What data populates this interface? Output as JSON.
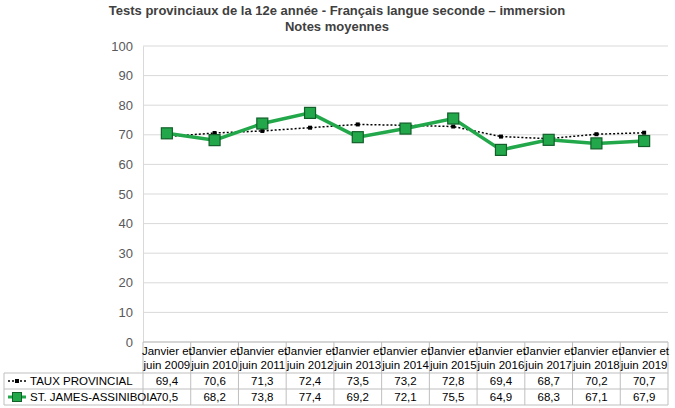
{
  "chart_data": {
    "type": "line",
    "title": "Tests provinciaux de la 12e année - Français langue seconde – immersion",
    "subtitle": "Notes moyennes",
    "categories": [
      "Janvier et juin 2009",
      "Janvier et juin 2010",
      "Janvier et juin 2011",
      "Janvier et juin 2012",
      "Janvier et juin 2013",
      "Janvier et juin 2014",
      "Janvier et juin 2015",
      "Janvier et juin 2016",
      "Janvier et juin 2017",
      "Janvier et juin 2018",
      "Janvier et juin 2019"
    ],
    "series": [
      {
        "name": "TAUX PROVINCIAL",
        "color": "#000000",
        "line_style": "dotted",
        "marker": "square",
        "values": [
          69.4,
          70.6,
          71.3,
          72.4,
          73.5,
          73.2,
          72.8,
          69.4,
          68.7,
          70.2,
          70.7
        ],
        "value_labels": [
          "69,4",
          "70,6",
          "71,3",
          "72,4",
          "73,5",
          "73,2",
          "72,8",
          "69,4",
          "68,7",
          "70,2",
          "70,7"
        ]
      },
      {
        "name": "ST. JAMES-ASSINIBOIA",
        "color": "#22a84a",
        "line_style": "solid",
        "marker": "square",
        "values": [
          70.5,
          68.2,
          73.8,
          77.4,
          69.2,
          72.1,
          75.5,
          64.9,
          68.3,
          67.1,
          67.9
        ],
        "value_labels": [
          "70,5",
          "68,2",
          "73,8",
          "77,4",
          "69,2",
          "72,1",
          "75,5",
          "64,9",
          "68,3",
          "67,1",
          "67,9"
        ]
      }
    ],
    "ylim": [
      0,
      100
    ],
    "yticks": [
      0,
      10,
      20,
      30,
      40,
      50,
      60,
      70,
      80,
      90,
      100
    ],
    "grid": true
  }
}
